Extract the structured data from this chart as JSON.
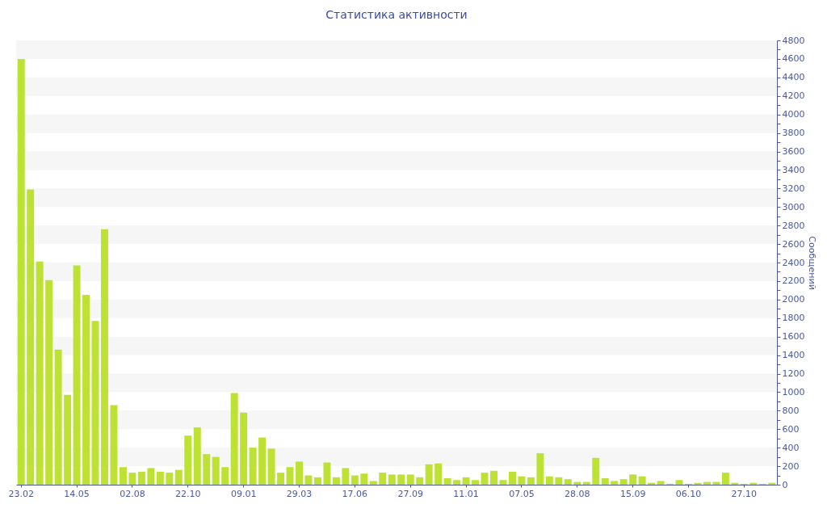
{
  "chart_data": {
    "type": "bar",
    "title": "Статистика активности",
    "ylabel": "Сообщений",
    "categories": [
      "23.02",
      null,
      null,
      null,
      null,
      null,
      "14.05",
      null,
      null,
      null,
      null,
      null,
      "02.08",
      null,
      null,
      null,
      null,
      null,
      "22.10",
      null,
      null,
      null,
      null,
      null,
      "09.01",
      null,
      null,
      null,
      null,
      null,
      "29.03",
      null,
      null,
      null,
      null,
      null,
      "17.06",
      null,
      null,
      null,
      null,
      null,
      "27.09",
      null,
      null,
      null,
      null,
      null,
      "11.01",
      null,
      null,
      null,
      null,
      null,
      "07.05",
      null,
      null,
      null,
      null,
      null,
      "28.08",
      null,
      null,
      null,
      null,
      null,
      "15.09",
      null,
      null,
      null,
      null,
      null,
      "06.10",
      null,
      null,
      null,
      null,
      null,
      "27.10",
      null,
      null,
      null
    ],
    "values": [
      4600,
      3190,
      2410,
      2210,
      1460,
      970,
      2370,
      2050,
      1770,
      2760,
      860,
      190,
      130,
      140,
      180,
      140,
      130,
      160,
      530,
      620,
      330,
      300,
      190,
      990,
      780,
      400,
      510,
      390,
      130,
      190,
      250,
      100,
      80,
      240,
      80,
      180,
      100,
      120,
      40,
      130,
      110,
      110,
      110,
      80,
      220,
      230,
      70,
      50,
      80,
      50,
      130,
      150,
      50,
      140,
      90,
      80,
      340,
      90,
      80,
      60,
      30,
      30,
      290,
      70,
      40,
      60,
      110,
      90,
      20,
      40,
      10,
      50,
      10,
      20,
      30,
      30,
      130,
      20,
      10,
      20,
      10,
      20
    ],
    "color": "#bde234",
    "ylim": [
      0,
      4800
    ],
    "yticks": [
      0,
      {
        "value": 100,
        "label": null
      },
      200,
      {
        "value": 300,
        "label": null
      },
      400,
      {
        "value": 500,
        "label": null
      },
      600,
      {
        "value": 700,
        "label": null
      },
      800,
      {
        "value": 900,
        "label": null
      },
      1000,
      {
        "value": 1100,
        "label": null
      },
      1200,
      {
        "value": 1300,
        "label": null
      },
      1400,
      {
        "value": 1500,
        "label": null
      },
      1600,
      {
        "value": 1700,
        "label": null
      },
      1800,
      {
        "value": 1900,
        "label": null
      },
      2000,
      {
        "value": 2100,
        "label": null
      },
      2200,
      {
        "value": 2300,
        "label": null
      },
      2400,
      {
        "value": 2500,
        "label": null
      },
      2600,
      {
        "value": 2700,
        "label": null
      },
      2800,
      {
        "value": 2900,
        "label": null
      },
      3000,
      {
        "value": 3100,
        "label": null
      },
      3200,
      {
        "value": 3300,
        "label": null
      },
      3400,
      {
        "value": 3500,
        "label": null
      },
      3600,
      {
        "value": 3700,
        "label": null
      },
      3800,
      {
        "value": 3900,
        "label": null
      },
      4000,
      {
        "value": 4100,
        "label": null
      },
      4200,
      {
        "value": 4300,
        "label": null
      },
      4400,
      {
        "value": 4500,
        "label": null
      },
      4600,
      {
        "value": 4700,
        "label": null
      },
      4800
    ]
  }
}
